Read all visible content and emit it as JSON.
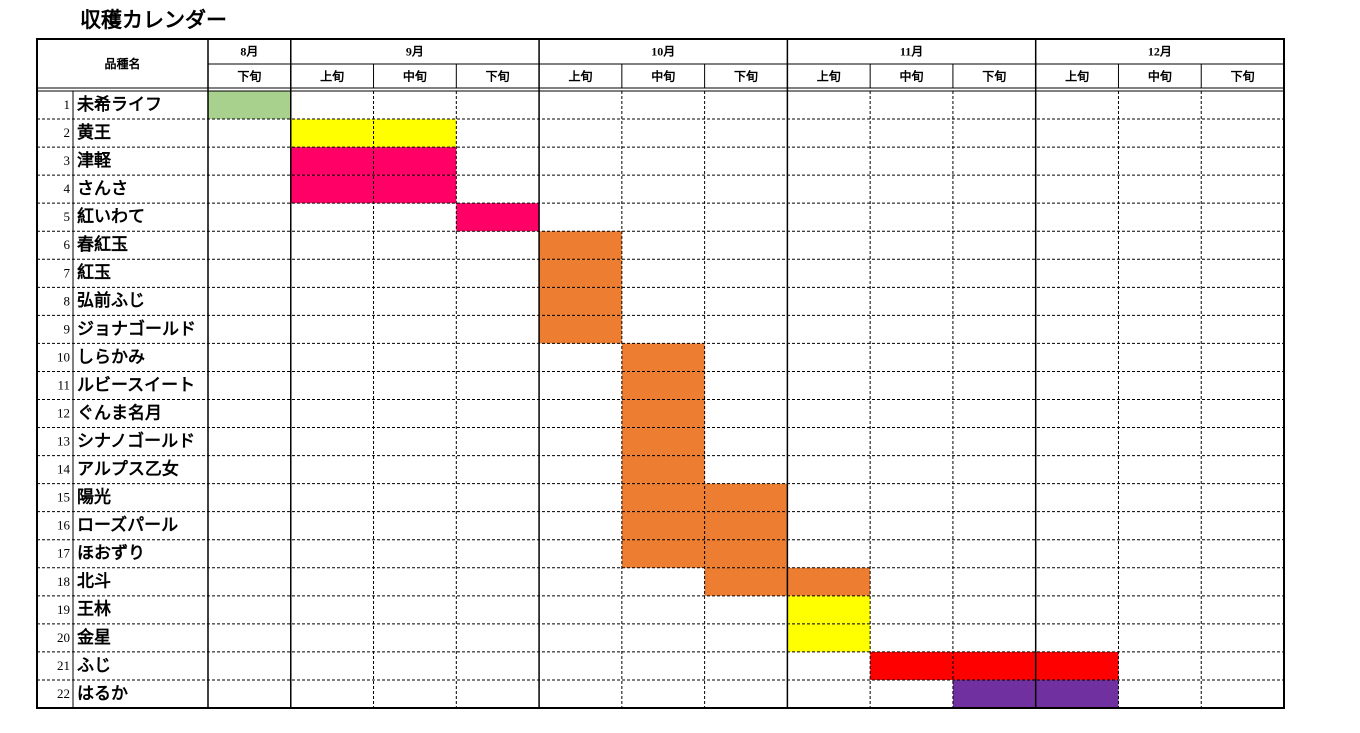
{
  "title": "収穫カレンダー",
  "table": {
    "name_header": "品種名",
    "months": [
      {
        "label": "8月",
        "thirds": [
          "下旬"
        ]
      },
      {
        "label": "9月",
        "thirds": [
          "上旬",
          "中旬",
          "下旬"
        ]
      },
      {
        "label": "10月",
        "thirds": [
          "上旬",
          "中旬",
          "下旬"
        ]
      },
      {
        "label": "11月",
        "thirds": [
          "上旬",
          "中旬",
          "下旬"
        ]
      },
      {
        "label": "12月",
        "thirds": [
          "上旬",
          "中旬",
          "下旬"
        ]
      }
    ],
    "rows": [
      {
        "no": 1,
        "name": "未希ライフ",
        "harvest": [
          "#a9d18e",
          null,
          null,
          null,
          null,
          null,
          null,
          null,
          null,
          null,
          null,
          null,
          null
        ]
      },
      {
        "no": 2,
        "name": "黄王",
        "harvest": [
          null,
          "#ffff00",
          "#ffff00",
          null,
          null,
          null,
          null,
          null,
          null,
          null,
          null,
          null,
          null
        ]
      },
      {
        "no": 3,
        "name": "津軽",
        "harvest": [
          null,
          "#ff0066",
          "#ff0066",
          null,
          null,
          null,
          null,
          null,
          null,
          null,
          null,
          null,
          null
        ]
      },
      {
        "no": 4,
        "name": "さんさ",
        "harvest": [
          null,
          "#ff0066",
          "#ff0066",
          null,
          null,
          null,
          null,
          null,
          null,
          null,
          null,
          null,
          null
        ]
      },
      {
        "no": 5,
        "name": "紅いわて",
        "harvest": [
          null,
          null,
          null,
          "#ff0066",
          null,
          null,
          null,
          null,
          null,
          null,
          null,
          null,
          null
        ]
      },
      {
        "no": 6,
        "name": "春紅玉",
        "harvest": [
          null,
          null,
          null,
          null,
          "#ed7d31",
          null,
          null,
          null,
          null,
          null,
          null,
          null,
          null
        ]
      },
      {
        "no": 7,
        "name": "紅玉",
        "harvest": [
          null,
          null,
          null,
          null,
          "#ed7d31",
          null,
          null,
          null,
          null,
          null,
          null,
          null,
          null
        ]
      },
      {
        "no": 8,
        "name": "弘前ふじ",
        "harvest": [
          null,
          null,
          null,
          null,
          "#ed7d31",
          null,
          null,
          null,
          null,
          null,
          null,
          null,
          null
        ]
      },
      {
        "no": 9,
        "name": "ジョナゴールド",
        "harvest": [
          null,
          null,
          null,
          null,
          "#ed7d31",
          null,
          null,
          null,
          null,
          null,
          null,
          null,
          null
        ]
      },
      {
        "no": 10,
        "name": "しらかみ",
        "harvest": [
          null,
          null,
          null,
          null,
          null,
          "#ed7d31",
          null,
          null,
          null,
          null,
          null,
          null,
          null
        ]
      },
      {
        "no": 11,
        "name": "ルビースイート",
        "harvest": [
          null,
          null,
          null,
          null,
          null,
          "#ed7d31",
          null,
          null,
          null,
          null,
          null,
          null,
          null
        ]
      },
      {
        "no": 12,
        "name": "ぐんま名月",
        "harvest": [
          null,
          null,
          null,
          null,
          null,
          "#ed7d31",
          null,
          null,
          null,
          null,
          null,
          null,
          null
        ]
      },
      {
        "no": 13,
        "name": "シナノゴールド",
        "harvest": [
          null,
          null,
          null,
          null,
          null,
          "#ed7d31",
          null,
          null,
          null,
          null,
          null,
          null,
          null
        ]
      },
      {
        "no": 14,
        "name": "アルプス乙女",
        "harvest": [
          null,
          null,
          null,
          null,
          null,
          "#ed7d31",
          null,
          null,
          null,
          null,
          null,
          null,
          null
        ]
      },
      {
        "no": 15,
        "name": "陽光",
        "harvest": [
          null,
          null,
          null,
          null,
          null,
          "#ed7d31",
          "#ed7d31",
          null,
          null,
          null,
          null,
          null,
          null
        ]
      },
      {
        "no": 16,
        "name": "ローズパール",
        "harvest": [
          null,
          null,
          null,
          null,
          null,
          "#ed7d31",
          "#ed7d31",
          null,
          null,
          null,
          null,
          null,
          null
        ]
      },
      {
        "no": 17,
        "name": "ほおずり",
        "harvest": [
          null,
          null,
          null,
          null,
          null,
          "#ed7d31",
          "#ed7d31",
          null,
          null,
          null,
          null,
          null,
          null
        ]
      },
      {
        "no": 18,
        "name": "北斗",
        "harvest": [
          null,
          null,
          null,
          null,
          null,
          null,
          "#ed7d31",
          "#ed7d31",
          null,
          null,
          null,
          null,
          null
        ]
      },
      {
        "no": 19,
        "name": "王林",
        "harvest": [
          null,
          null,
          null,
          null,
          null,
          null,
          null,
          "#ffff00",
          null,
          null,
          null,
          null,
          null
        ]
      },
      {
        "no": 20,
        "name": "金星",
        "harvest": [
          null,
          null,
          null,
          null,
          null,
          null,
          null,
          "#ffff00",
          null,
          null,
          null,
          null,
          null
        ]
      },
      {
        "no": 21,
        "name": "ふじ",
        "harvest": [
          null,
          null,
          null,
          null,
          null,
          null,
          null,
          null,
          "#ff0000",
          "#ff0000",
          "#ff0000",
          null,
          null
        ]
      },
      {
        "no": 22,
        "name": "はるか",
        "harvest": [
          null,
          null,
          null,
          null,
          null,
          null,
          null,
          null,
          null,
          "#7030a0",
          "#7030a0",
          null,
          null
        ]
      }
    ]
  }
}
